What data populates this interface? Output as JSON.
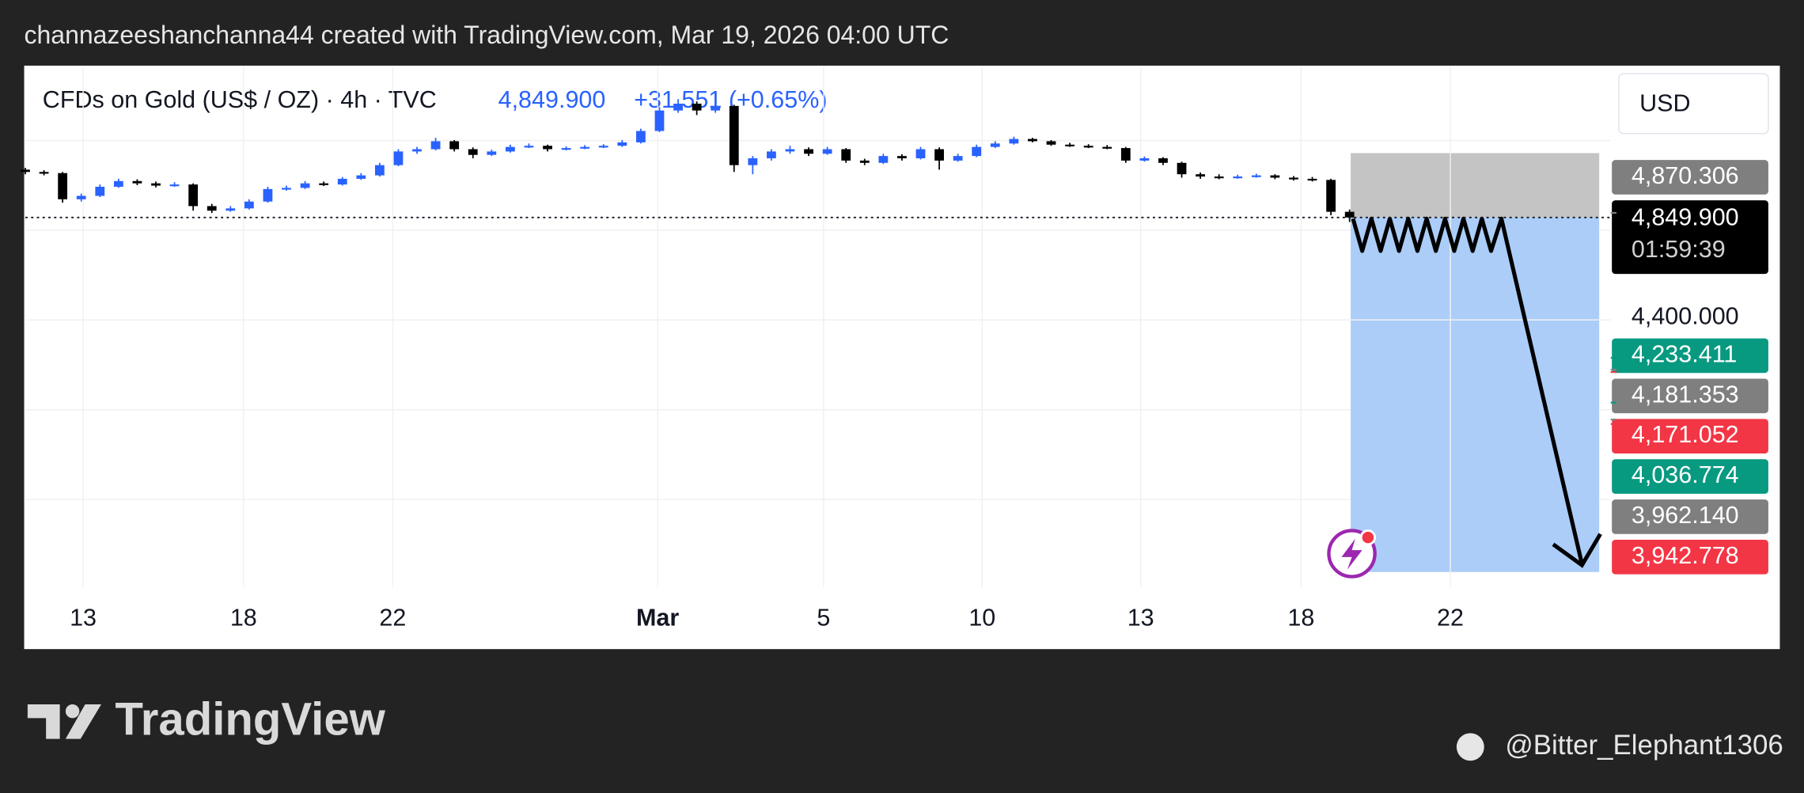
{
  "header": "channazeeshanchanna44 created with TradingView.com, Mar 19, 2026 04:00 UTC",
  "chart_data": {
    "type": "candlestick",
    "title": "CFDs on Gold (US$ / OZ) · 4h · TVC",
    "last": {
      "value": 4849.9,
      "label": "4,849.900"
    },
    "change": "+31.551 (+0.65%)",
    "countdown": "01:59:39",
    "currency": "USD",
    "up_color": "#2962ff",
    "down_color": "#000000",
    "xlim": [
      0,
      85
    ],
    "xticks": [
      {
        "value": 3.1,
        "label": "13"
      },
      {
        "value": 11.7,
        "label": "18"
      },
      {
        "value": 19.7,
        "label": "22"
      },
      {
        "value": 33.9,
        "label": "Mar"
      },
      {
        "value": 42.8,
        "label": "5"
      },
      {
        "value": 51.3,
        "label": "10"
      },
      {
        "value": 59.8,
        "label": "13"
      },
      {
        "value": 68.4,
        "label": "18"
      },
      {
        "value": 76.4,
        "label": "22"
      }
    ],
    "ylim": [
      3227,
      5517
    ],
    "yticks": [
      {
        "value": 4400,
        "label": "4,400.000"
      }
    ],
    "price_badges": [
      {
        "value": 4870.306,
        "label": "4,870.306",
        "color": "#7f7f7f"
      },
      {
        "value": 4233.411,
        "label": "4,233.411",
        "color": "#089981"
      },
      {
        "value": 4181.353,
        "label": "4,181.353",
        "color": "#7f7f7f"
      },
      {
        "value": 4171.052,
        "label": "4,171.052",
        "color": "#f23645"
      },
      {
        "value": 4036.774,
        "label": "4,036.774",
        "color": "#089981"
      },
      {
        "value": 3962.14,
        "label": "3,962.140",
        "color": "#7f7f7f"
      },
      {
        "value": 3942.778,
        "label": "3,942.778",
        "color": "#f23645"
      }
    ],
    "candles": [
      [
        5060,
        5068,
        5040,
        5050
      ],
      [
        5050,
        5058,
        5035,
        5045
      ],
      [
        5045,
        5050,
        4915,
        4930
      ],
      [
        4930,
        4955,
        4920,
        4945
      ],
      [
        4945,
        4995,
        4940,
        4985
      ],
      [
        4985,
        5020,
        4980,
        5010
      ],
      [
        5010,
        5018,
        4992,
        5000
      ],
      [
        5000,
        5008,
        4982,
        4990
      ],
      [
        4990,
        5005,
        4985,
        4995
      ],
      [
        4995,
        5000,
        4880,
        4900
      ],
      [
        4900,
        4910,
        4870,
        4880
      ],
      [
        4880,
        4900,
        4875,
        4890
      ],
      [
        4890,
        4930,
        4885,
        4920
      ],
      [
        4920,
        4985,
        4915,
        4975
      ],
      [
        4975,
        4990,
        4968,
        4980
      ],
      [
        4980,
        5010,
        4975,
        5000
      ],
      [
        5000,
        5008,
        4988,
        4995
      ],
      [
        4995,
        5028,
        4990,
        5020
      ],
      [
        5020,
        5045,
        5015,
        5035
      ],
      [
        5035,
        5090,
        5030,
        5080
      ],
      [
        5080,
        5150,
        5075,
        5140
      ],
      [
        5140,
        5160,
        5130,
        5150
      ],
      [
        5150,
        5200,
        5145,
        5185
      ],
      [
        5185,
        5190,
        5140,
        5150
      ],
      [
        5150,
        5158,
        5110,
        5125
      ],
      [
        5125,
        5148,
        5120,
        5140
      ],
      [
        5140,
        5170,
        5135,
        5160
      ],
      [
        5160,
        5175,
        5155,
        5165
      ],
      [
        5165,
        5170,
        5140,
        5150
      ],
      [
        5150,
        5162,
        5145,
        5155
      ],
      [
        5155,
        5168,
        5150,
        5160
      ],
      [
        5160,
        5172,
        5155,
        5165
      ],
      [
        5165,
        5190,
        5160,
        5180
      ],
      [
        5180,
        5240,
        5175,
        5230
      ],
      [
        5230,
        5335,
        5225,
        5320
      ],
      [
        5320,
        5370,
        5310,
        5350
      ],
      [
        5350,
        5360,
        5300,
        5320
      ],
      [
        5320,
        5355,
        5310,
        5340
      ],
      [
        5340,
        5345,
        5050,
        5080
      ],
      [
        5080,
        5120,
        5040,
        5110
      ],
      [
        5110,
        5150,
        5100,
        5140
      ],
      [
        5140,
        5165,
        5130,
        5150
      ],
      [
        5150,
        5158,
        5120,
        5130
      ],
      [
        5130,
        5160,
        5125,
        5150
      ],
      [
        5150,
        5155,
        5090,
        5100
      ],
      [
        5100,
        5108,
        5080,
        5090
      ],
      [
        5090,
        5130,
        5085,
        5120
      ],
      [
        5120,
        5128,
        5100,
        5110
      ],
      [
        5110,
        5160,
        5105,
        5150
      ],
      [
        5150,
        5158,
        5060,
        5100
      ],
      [
        5100,
        5130,
        5095,
        5120
      ],
      [
        5120,
        5170,
        5115,
        5160
      ],
      [
        5160,
        5185,
        5155,
        5175
      ],
      [
        5175,
        5205,
        5170,
        5195
      ],
      [
        5195,
        5200,
        5180,
        5185
      ],
      [
        5185,
        5190,
        5165,
        5170
      ],
      [
        5170,
        5178,
        5160,
        5165
      ],
      [
        5165,
        5172,
        5155,
        5160
      ],
      [
        5160,
        5168,
        5150,
        5155
      ],
      [
        5155,
        5160,
        5090,
        5100
      ],
      [
        5100,
        5118,
        5095,
        5110
      ],
      [
        5110,
        5115,
        5080,
        5090
      ],
      [
        5090,
        5095,
        5025,
        5040
      ],
      [
        5040,
        5048,
        5020,
        5030
      ],
      [
        5030,
        5040,
        5018,
        5025
      ],
      [
        5025,
        5038,
        5020,
        5030
      ],
      [
        5030,
        5042,
        5025,
        5035
      ],
      [
        5035,
        5040,
        5018,
        5025
      ],
      [
        5025,
        5032,
        5012,
        5020
      ],
      [
        5020,
        5028,
        5008,
        5015
      ],
      [
        5015,
        5020,
        4860,
        4875
      ],
      [
        4875,
        4885,
        4830,
        4849.9
      ]
    ]
  },
  "footer": {
    "logo": "TradingView",
    "watermark": "@Bitter_Elephant1306"
  }
}
